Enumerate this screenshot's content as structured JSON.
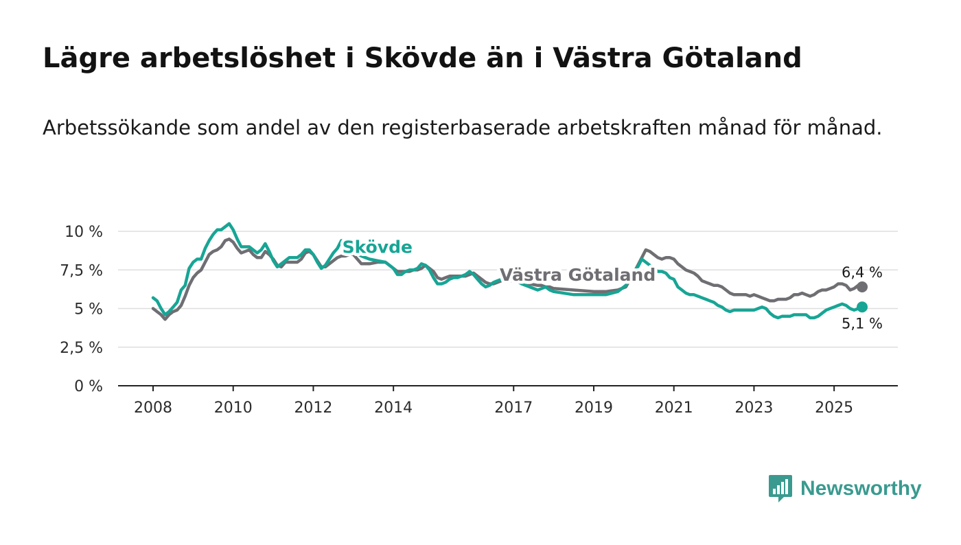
{
  "title": "Lägre arbetslöshet i Skövde än i Västra Götaland",
  "subtitle": "Arbetssökande som andel av den registerbaserade arbetskraften månad för månad.",
  "brand": {
    "name": "Newsworthy",
    "icon": "newsworthy-logo-icon",
    "color": "#3a9a8f"
  },
  "chart_data": {
    "type": "line",
    "title": "Lägre arbetslöshet i Skövde än i Västra Götaland",
    "xlabel": "",
    "ylabel": "",
    "xlim": [
      2008,
      2025.7
    ],
    "ylim": [
      0,
      10
    ],
    "grid": true,
    "y_ticks": [
      {
        "value": 0,
        "label": "0 %"
      },
      {
        "value": 2.5,
        "label": "2,5 %"
      },
      {
        "value": 5,
        "label": "5 %"
      },
      {
        "value": 7.5,
        "label": "7,5 %"
      },
      {
        "value": 10,
        "label": "10 %"
      }
    ],
    "x_ticks": [
      {
        "value": 2008,
        "label": "2008"
      },
      {
        "value": 2010,
        "label": "2010"
      },
      {
        "value": 2012,
        "label": "2012"
      },
      {
        "value": 2014,
        "label": "2014"
      },
      {
        "value": 2017,
        "label": "2017"
      },
      {
        "value": 2019,
        "label": "2019"
      },
      {
        "value": 2021,
        "label": "2021"
      },
      {
        "value": 2023,
        "label": "2023"
      },
      {
        "value": 2025,
        "label": "2025"
      }
    ],
    "series": [
      {
        "name": "Västra Götaland",
        "label": "Västra Götaland",
        "color": "#6e6e73",
        "end_label": "6,4 %",
        "x": [
          2008.0,
          2008.1,
          2008.2,
          2008.3,
          2008.4,
          2008.5,
          2008.6,
          2008.7,
          2008.8,
          2008.9,
          2009.0,
          2009.1,
          2009.2,
          2009.3,
          2009.4,
          2009.5,
          2009.6,
          2009.7,
          2009.8,
          2009.9,
          2010.0,
          2010.1,
          2010.2,
          2010.3,
          2010.4,
          2010.5,
          2010.6,
          2010.7,
          2010.8,
          2010.9,
          2011.0,
          2011.1,
          2011.2,
          2011.3,
          2011.4,
          2011.5,
          2011.6,
          2011.7,
          2011.8,
          2011.9,
          2012.0,
          2012.1,
          2012.2,
          2012.3,
          2012.4,
          2012.5,
          2012.6,
          2012.7,
          2012.8,
          2012.9,
          2013.0,
          2013.2,
          2013.4,
          2013.6,
          2013.8,
          2014.0,
          2014.1,
          2014.2,
          2014.3,
          2014.4,
          2014.5,
          2014.6,
          2014.7,
          2014.8,
          2014.9,
          2015.0,
          2015.1,
          2015.2,
          2015.3,
          2015.4,
          2015.5,
          2015.6,
          2015.7,
          2015.8,
          2015.9,
          2016.0,
          2016.1,
          2016.2,
          2016.3,
          2016.4,
          2016.5,
          2016.6,
          2016.7,
          2016.8,
          2016.9,
          2017.0,
          2017.2,
          2017.4,
          2017.6,
          2017.7,
          2017.8,
          2017.9,
          2018.0,
          2018.5,
          2019.0,
          2019.3,
          2019.6,
          2019.8,
          2020.0,
          2020.1,
          2020.2,
          2020.3,
          2020.4,
          2020.5,
          2020.6,
          2020.7,
          2020.8,
          2020.9,
          2021.0,
          2021.1,
          2021.2,
          2021.3,
          2021.4,
          2021.5,
          2021.6,
          2021.7,
          2021.8,
          2021.9,
          2022.0,
          2022.1,
          2022.2,
          2022.3,
          2022.4,
          2022.5,
          2022.6,
          2022.7,
          2022.8,
          2022.9,
          2023.0,
          2023.1,
          2023.2,
          2023.3,
          2023.4,
          2023.5,
          2023.6,
          2023.7,
          2023.8,
          2023.9,
          2024.0,
          2024.1,
          2024.2,
          2024.3,
          2024.4,
          2024.5,
          2024.6,
          2024.7,
          2024.8,
          2024.9,
          2025.0,
          2025.1,
          2025.2,
          2025.3,
          2025.4,
          2025.5,
          2025.6,
          2025.7
        ],
        "values": [
          5.0,
          4.8,
          4.6,
          4.3,
          4.6,
          4.8,
          4.9,
          5.2,
          5.8,
          6.5,
          7.0,
          7.3,
          7.5,
          8.0,
          8.5,
          8.7,
          8.8,
          9.0,
          9.4,
          9.5,
          9.3,
          8.9,
          8.6,
          8.7,
          8.8,
          8.5,
          8.3,
          8.3,
          8.7,
          8.5,
          8.2,
          7.8,
          7.7,
          8.0,
          8.0,
          8.0,
          8.0,
          8.2,
          8.6,
          8.7,
          8.5,
          8.1,
          7.7,
          7.7,
          7.9,
          8.1,
          8.3,
          8.4,
          8.4,
          8.5,
          8.5,
          7.9,
          7.9,
          8.0,
          8.0,
          7.6,
          7.4,
          7.4,
          7.4,
          7.4,
          7.5,
          7.5,
          7.6,
          7.8,
          7.6,
          7.4,
          7.0,
          6.9,
          7.0,
          7.1,
          7.1,
          7.1,
          7.1,
          7.1,
          7.2,
          7.3,
          7.1,
          6.9,
          6.7,
          6.6,
          6.6,
          6.7,
          6.8,
          6.8,
          6.8,
          6.8,
          6.7,
          6.6,
          6.5,
          6.5,
          6.4,
          6.4,
          6.3,
          6.2,
          6.1,
          6.1,
          6.2,
          6.4,
          7.3,
          7.8,
          8.3,
          8.8,
          8.7,
          8.5,
          8.3,
          8.2,
          8.3,
          8.3,
          8.2,
          7.9,
          7.7,
          7.5,
          7.4,
          7.3,
          7.1,
          6.8,
          6.7,
          6.6,
          6.5,
          6.5,
          6.4,
          6.2,
          6.0,
          5.9,
          5.9,
          5.9,
          5.9,
          5.8,
          5.9,
          5.8,
          5.7,
          5.6,
          5.5,
          5.5,
          5.6,
          5.6,
          5.6,
          5.7,
          5.9,
          5.9,
          6.0,
          5.9,
          5.8,
          5.9,
          6.1,
          6.2,
          6.2,
          6.3,
          6.4,
          6.6,
          6.6,
          6.5,
          6.2,
          6.3,
          6.5,
          6.4
        ]
      },
      {
        "name": "Skövde",
        "label": "Skövde",
        "color": "#17a595",
        "end_label": "5,1 %",
        "x": [
          2008.0,
          2008.1,
          2008.2,
          2008.3,
          2008.4,
          2008.5,
          2008.6,
          2008.7,
          2008.8,
          2008.9,
          2009.0,
          2009.1,
          2009.2,
          2009.3,
          2009.4,
          2009.5,
          2009.6,
          2009.7,
          2009.8,
          2009.9,
          2010.0,
          2010.1,
          2010.2,
          2010.3,
          2010.4,
          2010.5,
          2010.6,
          2010.7,
          2010.8,
          2010.9,
          2011.0,
          2011.1,
          2011.2,
          2011.3,
          2011.4,
          2011.5,
          2011.6,
          2011.7,
          2011.8,
          2011.9,
          2012.0,
          2012.1,
          2012.2,
          2012.3,
          2012.4,
          2012.5,
          2012.6,
          2012.7,
          2012.8,
          2012.9,
          2013.0,
          2013.2,
          2013.4,
          2013.6,
          2013.8,
          2014.0,
          2014.1,
          2014.2,
          2014.3,
          2014.4,
          2014.5,
          2014.6,
          2014.7,
          2014.8,
          2014.9,
          2015.0,
          2015.1,
          2015.2,
          2015.3,
          2015.4,
          2015.5,
          2015.6,
          2015.7,
          2015.8,
          2015.9,
          2016.0,
          2016.1,
          2016.2,
          2016.3,
          2016.4,
          2016.5,
          2016.6,
          2016.7,
          2016.8,
          2016.9,
          2017.0,
          2017.2,
          2017.4,
          2017.6,
          2017.7,
          2017.8,
          2017.9,
          2018.0,
          2018.5,
          2019.0,
          2019.3,
          2019.6,
          2019.8,
          2020.0,
          2020.1,
          2020.2,
          2020.3,
          2020.4,
          2020.5,
          2020.6,
          2020.7,
          2020.8,
          2020.9,
          2021.0,
          2021.1,
          2021.2,
          2021.3,
          2021.4,
          2021.5,
          2021.6,
          2021.7,
          2021.8,
          2021.9,
          2022.0,
          2022.1,
          2022.2,
          2022.3,
          2022.4,
          2022.5,
          2022.6,
          2022.7,
          2022.8,
          2022.9,
          2023.0,
          2023.1,
          2023.2,
          2023.3,
          2023.4,
          2023.5,
          2023.6,
          2023.7,
          2023.8,
          2023.9,
          2024.0,
          2024.1,
          2024.2,
          2024.3,
          2024.4,
          2024.5,
          2024.6,
          2024.7,
          2024.8,
          2024.9,
          2025.0,
          2025.1,
          2025.2,
          2025.3,
          2025.4,
          2025.5,
          2025.6,
          2025.7
        ],
        "values": [
          5.7,
          5.5,
          5.0,
          4.6,
          4.8,
          5.1,
          5.4,
          6.2,
          6.5,
          7.6,
          8.0,
          8.2,
          8.2,
          8.9,
          9.4,
          9.8,
          10.1,
          10.1,
          10.3,
          10.5,
          10.1,
          9.5,
          9.0,
          9.0,
          9.0,
          8.8,
          8.6,
          8.8,
          9.2,
          8.7,
          8.1,
          7.7,
          7.9,
          8.1,
          8.3,
          8.3,
          8.3,
          8.5,
          8.8,
          8.8,
          8.5,
          8.0,
          7.6,
          7.8,
          8.2,
          8.6,
          8.9,
          9.4,
          9.3,
          9.1,
          8.7,
          8.4,
          8.2,
          8.1,
          8.0,
          7.6,
          7.2,
          7.2,
          7.4,
          7.5,
          7.5,
          7.6,
          7.9,
          7.8,
          7.5,
          7.0,
          6.6,
          6.6,
          6.7,
          6.9,
          7.0,
          7.0,
          7.1,
          7.2,
          7.4,
          7.2,
          6.9,
          6.6,
          6.4,
          6.5,
          6.7,
          6.8,
          6.9,
          6.9,
          6.9,
          6.9,
          6.6,
          6.4,
          6.2,
          6.3,
          6.4,
          6.2,
          6.1,
          5.9,
          5.9,
          5.9,
          6.1,
          6.5,
          7.4,
          7.7,
          8.2,
          8.0,
          7.8,
          7.6,
          7.4,
          7.4,
          7.3,
          7.0,
          6.9,
          6.4,
          6.2,
          6.0,
          5.9,
          5.9,
          5.8,
          5.7,
          5.6,
          5.5,
          5.4,
          5.2,
          5.1,
          4.9,
          4.8,
          4.9,
          4.9,
          4.9,
          4.9,
          4.9,
          4.9,
          5.0,
          5.1,
          5.0,
          4.7,
          4.5,
          4.4,
          4.5,
          4.5,
          4.5,
          4.6,
          4.6,
          4.6,
          4.6,
          4.4,
          4.4,
          4.5,
          4.7,
          4.9,
          5.0,
          5.1,
          5.2,
          5.3,
          5.2,
          5.0,
          4.9,
          5.0,
          5.1
        ]
      }
    ],
    "inline_labels": [
      {
        "series": "Skövde",
        "x": 2013.6,
        "y": 8.6
      },
      {
        "series": "Västra Götaland",
        "x": 2018.6,
        "y": 6.8
      }
    ]
  }
}
